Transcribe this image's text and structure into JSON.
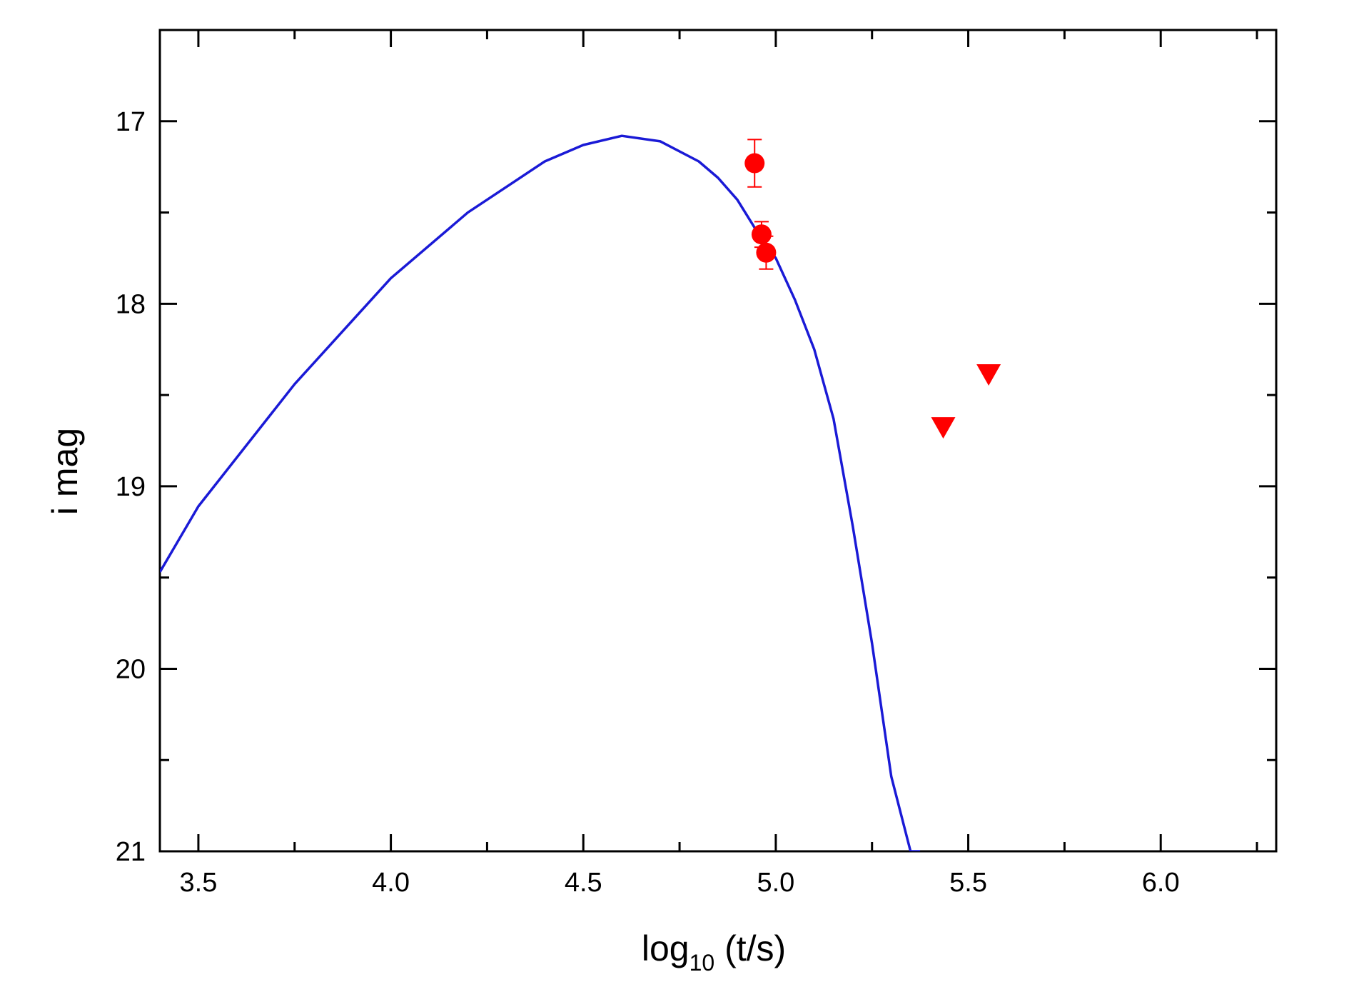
{
  "chart_data": {
    "type": "scatter",
    "title": "",
    "xlabel": {
      "main": "log",
      "subscript": "10",
      "rest": " (t/s)"
    },
    "ylabel": "i mag",
    "xlim": [
      3.4,
      6.3
    ],
    "ylim": [
      21,
      16.5
    ],
    "y_inverted": true,
    "grid": false,
    "x_ticks": [
      3.5,
      4.0,
      4.5,
      5.0,
      5.5,
      6.0
    ],
    "x_tick_labels": [
      "3.5",
      "4.0",
      "4.5",
      "5.0",
      "5.5",
      "6.0"
    ],
    "x_minor_ticks": [
      3.75,
      4.25,
      4.75,
      5.25,
      5.75,
      6.25
    ],
    "y_ticks": [
      17,
      18,
      19,
      20,
      21
    ],
    "y_tick_labels": [
      "17",
      "18",
      "19",
      "20",
      "21"
    ],
    "y_minor_ticks": [
      17.5,
      18.5,
      19.5,
      20.5
    ],
    "colors": {
      "model": "#1a1ad6",
      "data": "#ff0000",
      "axis": "#000000"
    },
    "series": [
      {
        "kind": "line",
        "color": "#1a1ad6",
        "x": [
          3.4,
          3.5,
          3.75,
          4.0,
          4.2,
          4.4,
          4.5,
          4.6,
          4.7,
          4.8,
          4.85,
          4.9,
          4.95,
          5.0,
          5.05,
          5.1,
          5.15,
          5.2,
          5.25,
          5.3,
          5.35,
          5.375
        ],
        "y": [
          19.47,
          19.11,
          18.44,
          17.86,
          17.5,
          17.22,
          17.13,
          17.08,
          17.11,
          17.22,
          17.31,
          17.43,
          17.6,
          17.75,
          17.98,
          18.25,
          18.63,
          19.22,
          19.86,
          20.59,
          21.0,
          21.0
        ]
      },
      {
        "kind": "points",
        "marker": "circle",
        "color": "#ff0000",
        "x": [
          4.945,
          4.963,
          4.975
        ],
        "y": [
          17.23,
          17.62,
          17.72
        ],
        "yerr": [
          0.13,
          0.07,
          0.09
        ]
      },
      {
        "kind": "points",
        "marker": "triangle-down",
        "color": "#ff0000",
        "note": "upper limits",
        "x": [
          5.435,
          5.553
        ],
        "y": [
          18.68,
          18.39
        ]
      }
    ]
  }
}
